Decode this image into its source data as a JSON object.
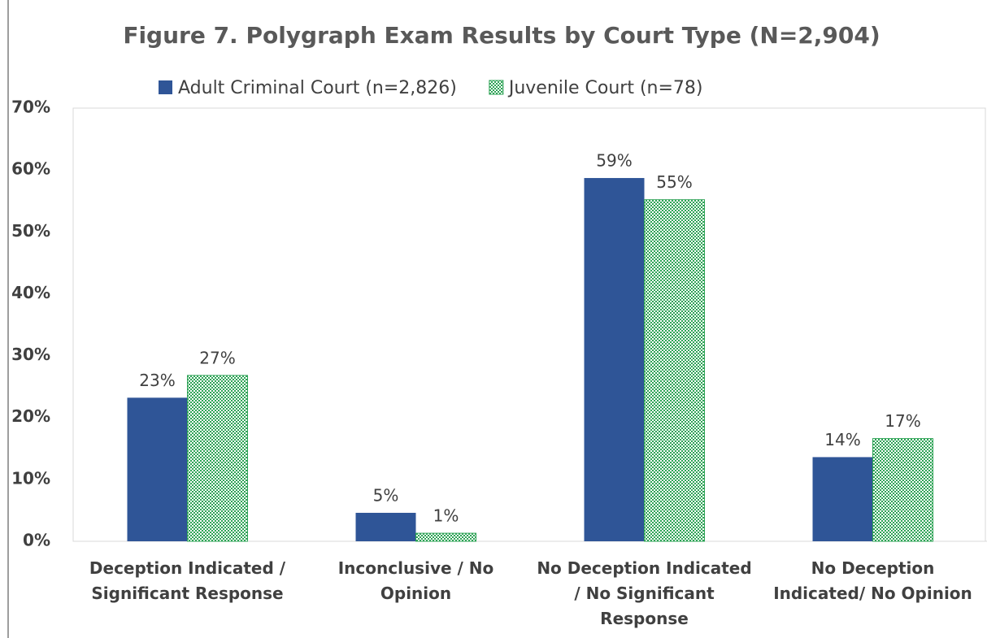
{
  "chart_data": {
    "type": "bar",
    "title": "Figure 7. Polygraph Exam Results by Court Type (N=2,904)",
    "categories": [
      "Deception Indicated / Significant Response",
      "Inconclusive / No Opinion",
      "No Deception Indicated / No Significant Response",
      "No Deception Indicated/ No Opinion"
    ],
    "series": [
      {
        "name": "Adult Criminal Court (n=2,826)",
        "color": "#2f5597",
        "pattern": false,
        "values": [
          23.2,
          4.6,
          58.7,
          13.6
        ],
        "value_labels": [
          "23%",
          "5%",
          "59%",
          "14%"
        ]
      },
      {
        "name": "Juvenile Court (n=78)",
        "color": "#2ea356",
        "pattern": true,
        "values": [
          26.8,
          1.3,
          55.2,
          16.6
        ],
        "value_labels": [
          "27%",
          "1%",
          "55%",
          "17%"
        ]
      }
    ],
    "ylim": [
      0,
      70
    ],
    "yticks": [
      {
        "value": 0,
        "label": "0%"
      },
      {
        "value": 10,
        "label": "10%"
      },
      {
        "value": 20,
        "label": "20%"
      },
      {
        "value": 30,
        "label": "30%"
      },
      {
        "value": 40,
        "label": "40%"
      },
      {
        "value": 50,
        "label": "50%"
      },
      {
        "value": 60,
        "label": "60%"
      },
      {
        "value": 70,
        "label": "70%"
      }
    ],
    "grid": false,
    "legend": "top"
  }
}
